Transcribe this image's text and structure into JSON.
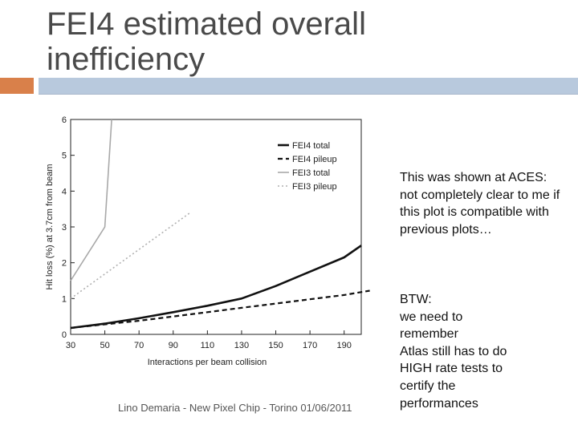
{
  "slide": {
    "title": "FEI4 estimated overall inefficiency",
    "note_1": "This was shown at ACES: not completely clear to me if this plot is compatible with previous plots…",
    "note_2_lines": [
      "BTW:",
      "we need to",
      "remember",
      "Atlas still has to do",
      "HIGH rate tests to",
      "certify the",
      "performances"
    ],
    "footer": "Lino Demaria - New Pixel Chip - Torino 01/06/2011",
    "colors": {
      "accent_orange": "#d9804a",
      "accent_blue": "#b8c9dd"
    }
  },
  "chart_data": {
    "type": "line",
    "xlabel": "Interactions per beam collision",
    "ylabel": "Hit loss (%) at 3.7cm from beam",
    "xlim": [
      30,
      200
    ],
    "ylim": [
      0,
      6
    ],
    "x_ticks": [
      30,
      50,
      70,
      90,
      110,
      130,
      150,
      170,
      190
    ],
    "y_ticks": [
      0,
      1,
      2,
      3,
      4,
      5,
      6
    ],
    "grid": false,
    "legend_position": "top-right",
    "series": [
      {
        "name": "FEI4 total",
        "color": "#111111",
        "style": "solid",
        "width": 2.6,
        "x": [
          30,
          50,
          70,
          90,
          110,
          130,
          150,
          170,
          190,
          200
        ],
        "y": [
          0.18,
          0.3,
          0.45,
          0.62,
          0.8,
          1.0,
          1.35,
          1.75,
          2.15,
          2.48
        ]
      },
      {
        "name": "FEI4 pileup",
        "color": "#111111",
        "style": "dashed",
        "width": 2.2,
        "x": [
          30,
          50,
          70,
          90,
          110,
          130,
          150,
          170,
          190,
          205
        ],
        "y": [
          0.18,
          0.28,
          0.38,
          0.5,
          0.62,
          0.74,
          0.86,
          0.98,
          1.1,
          1.22
        ]
      },
      {
        "name": "FEI3 total",
        "color": "#a8a8a8",
        "style": "solid",
        "width": 1.6,
        "x": [
          30,
          50,
          54
        ],
        "y": [
          1.5,
          3.0,
          6.0
        ]
      },
      {
        "name": "FEI3 pileup",
        "color": "#b0b0b0",
        "style": "dotted",
        "width": 1.6,
        "x": [
          30,
          100
        ],
        "y": [
          1.0,
          3.4
        ]
      }
    ]
  }
}
